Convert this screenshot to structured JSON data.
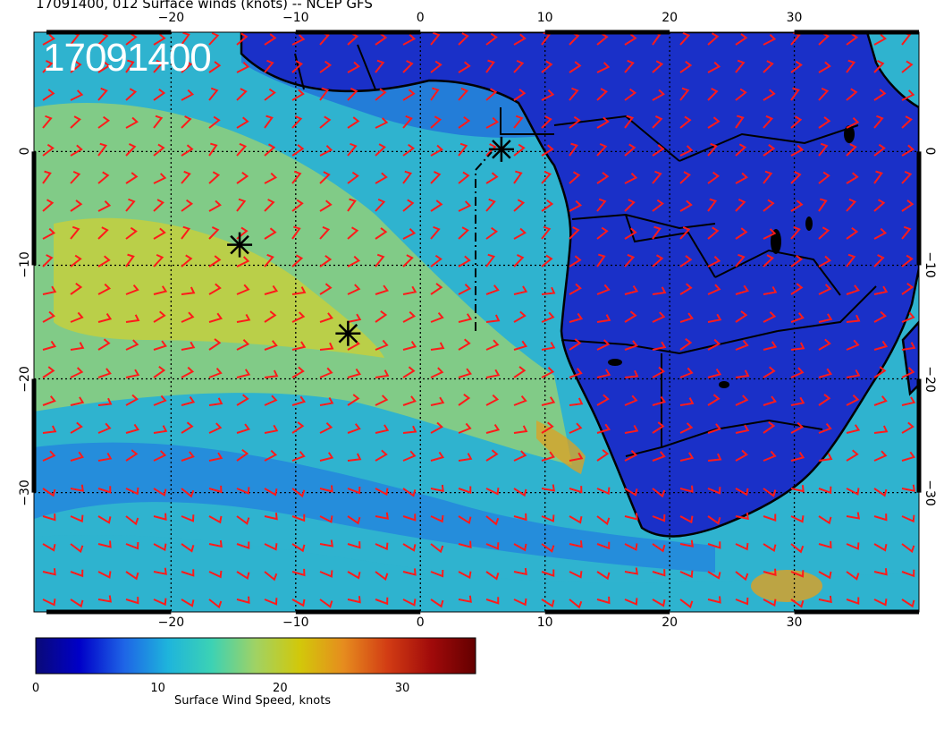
{
  "title": "17091400, 012 Surface winds (knots) -- NCEP GFS",
  "stamp": "17091400",
  "lon_ticks": [
    "−20",
    "−10",
    "0",
    "10",
    "20",
    "30"
  ],
  "lat_ticks": [
    "0",
    "−10",
    "−20",
    "−30"
  ],
  "lon_values": [
    -20,
    -10,
    0,
    10,
    20,
    30
  ],
  "lat_values": [
    0,
    -10,
    -20,
    -30
  ],
  "colorbar": {
    "label": "Surface Wind Speed, knots",
    "ticks": [
      "0",
      "10",
      "20",
      "30"
    ],
    "tick_values": [
      0,
      10,
      20,
      30
    ],
    "range": [
      0,
      36
    ],
    "colors": [
      "#0a0a78",
      "#0000c8",
      "#1e64e6",
      "#1eb4dc",
      "#3cd2b4",
      "#a0d264",
      "#d2c80a",
      "#e68c1e",
      "#d23c14",
      "#a00a0a",
      "#640000"
    ]
  },
  "map": {
    "lon_range": [
      -31,
      40
    ],
    "lat_range": [
      -40.5,
      10.5
    ],
    "ocean_color": "#2fb3cf",
    "land_color": "#1a30c8",
    "barb_color": "#ff1a1a",
    "markers": [
      {
        "name": "marker-equator",
        "lon": 6.5,
        "lat": 0.2
      },
      {
        "name": "marker-west",
        "lon": -14.5,
        "lat": -8.2
      },
      {
        "name": "marker-south",
        "lon": -5.8,
        "lat": -16.0
      }
    ]
  }
}
